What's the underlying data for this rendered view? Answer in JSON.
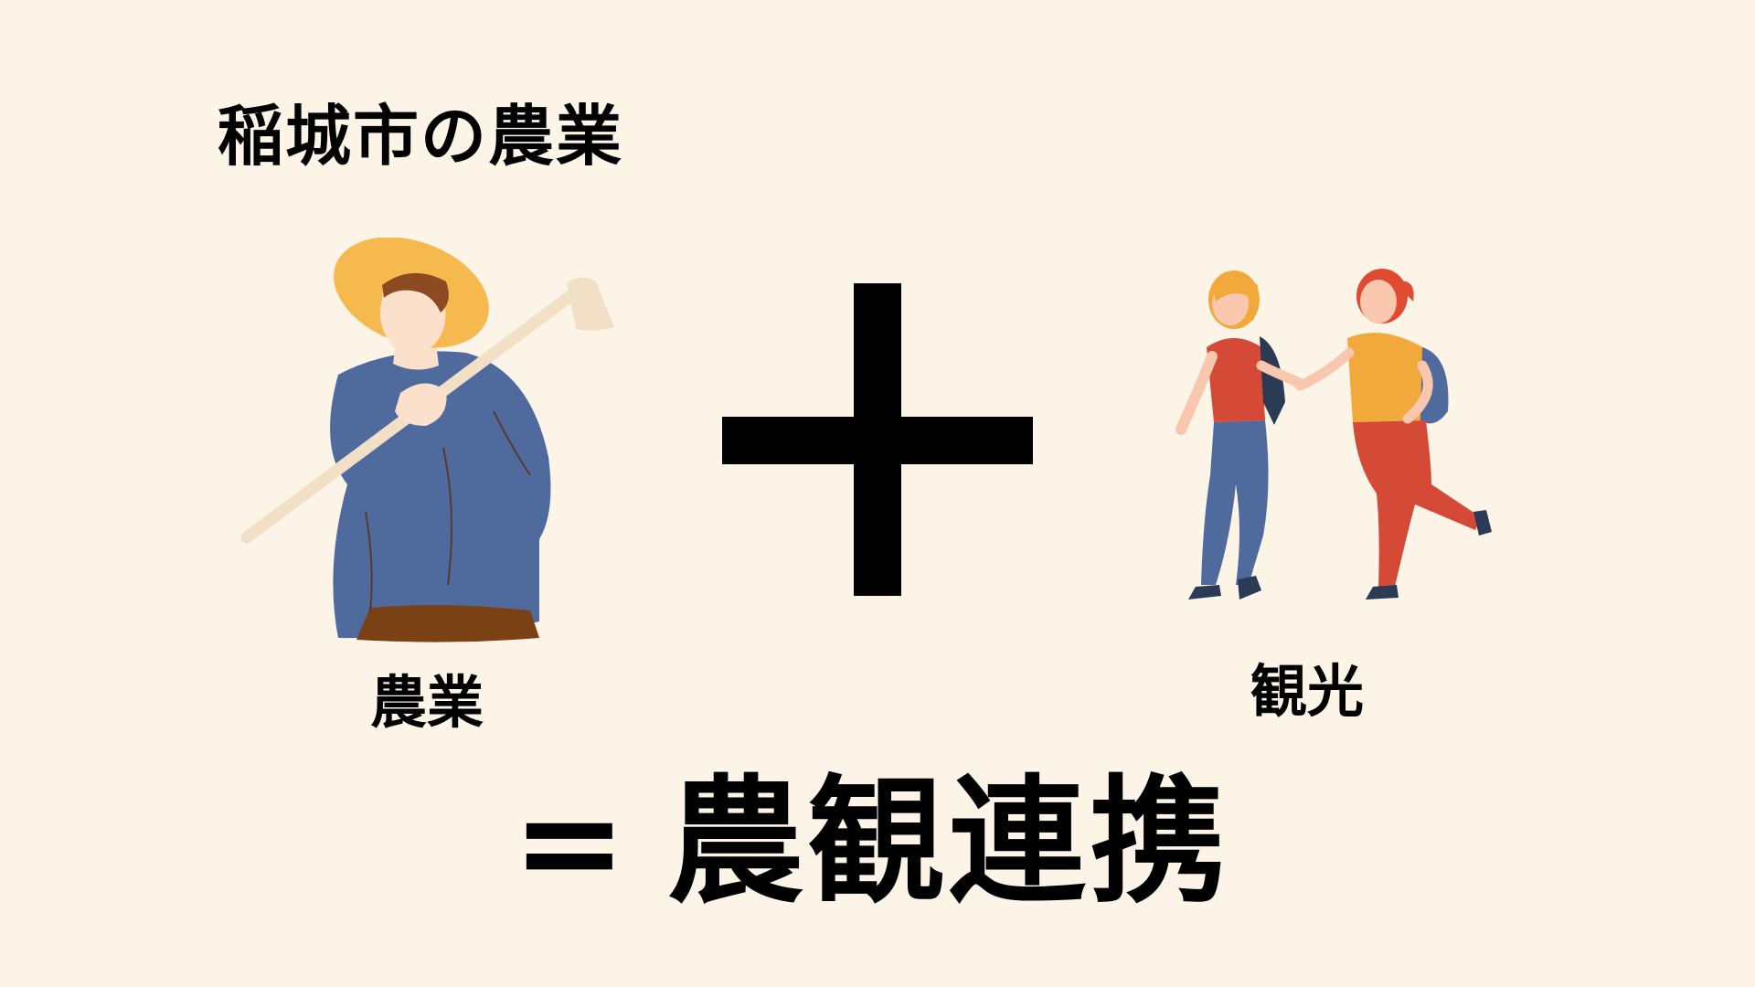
{
  "title": "稲城市の農業",
  "farmer": {
    "label": "農業",
    "icon": "farmer-with-hoe-icon"
  },
  "operator": {
    "icon": "plus-icon"
  },
  "tourists": {
    "label": "観光",
    "icon": "walking-tourists-icon"
  },
  "result": {
    "equals": "=",
    "text": "農観連携"
  },
  "colors": {
    "background": "#fdf4e8",
    "text": "#000000",
    "hat": "#f6b94e",
    "shirt_blue": "#4f6a9c",
    "tourist_red": "#d54a36",
    "tourist_yellow": "#f2a93b"
  }
}
